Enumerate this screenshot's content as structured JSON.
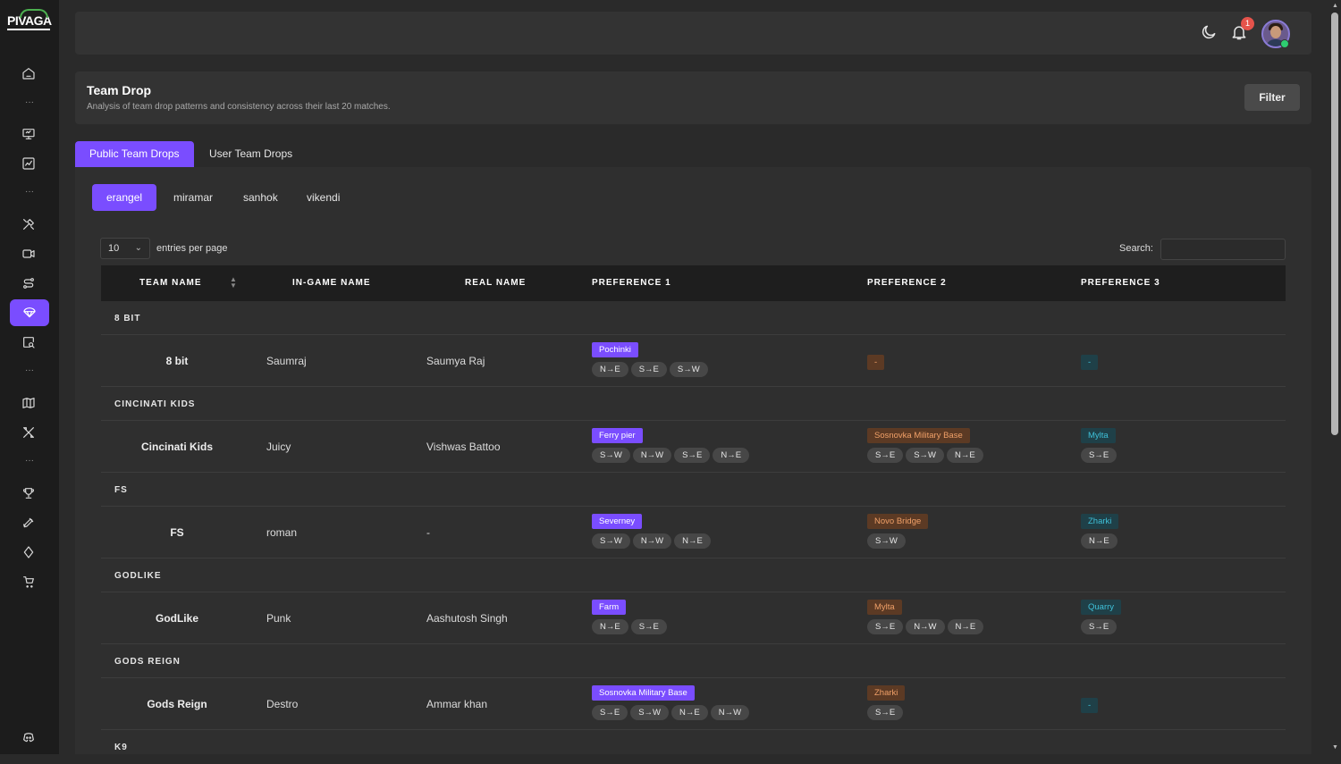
{
  "app": {
    "logo": "PIVAGA"
  },
  "header": {
    "notification_count": "1"
  },
  "page": {
    "title": "Team Drop",
    "subtitle": "Analysis of team drop patterns and consistency across their last 20 matches.",
    "filter_label": "Filter"
  },
  "tabs": [
    "Public Team Drops",
    "User Team Drops"
  ],
  "maps": [
    "erangel",
    "miramar",
    "sanhok",
    "vikendi"
  ],
  "table_controls": {
    "entries_value": "10",
    "entries_label": "entries per page",
    "search_label": "Search:"
  },
  "columns": [
    "TEAM NAME",
    "IN-GAME NAME",
    "REAL NAME",
    "PREFERENCE 1",
    "PREFERENCE 2",
    "PREFERENCE 3"
  ],
  "groups": [
    {
      "group": "8 BIT",
      "team": "8 bit",
      "ign": "Saumraj",
      "real": "Saumya Raj",
      "p1": {
        "loc": "Pochinki",
        "dirs": [
          "N→E",
          "S→E",
          "S→W"
        ]
      },
      "p2": {
        "loc": "-",
        "dirs": []
      },
      "p3": {
        "loc": "-",
        "dirs": []
      }
    },
    {
      "group": "CINCINATI KIDS",
      "team": "Cincinati Kids",
      "ign": "Juicy",
      "real": "Vishwas Battoo",
      "p1": {
        "loc": "Ferry pier",
        "dirs": [
          "S→W",
          "N→W",
          "S→E",
          "N→E"
        ]
      },
      "p2": {
        "loc": "Sosnovka Military Base",
        "dirs": [
          "S→E",
          "S→W",
          "N→E"
        ]
      },
      "p3": {
        "loc": "Mylta",
        "dirs": [
          "S→E"
        ]
      }
    },
    {
      "group": "FS",
      "team": "FS",
      "ign": "roman",
      "real": "-",
      "p1": {
        "loc": "Severney",
        "dirs": [
          "S→W",
          "N→W",
          "N→E"
        ]
      },
      "p2": {
        "loc": "Novo Bridge",
        "dirs": [
          "S→W"
        ]
      },
      "p3": {
        "loc": "Zharki",
        "dirs": [
          "N→E"
        ]
      }
    },
    {
      "group": "GODLIKE",
      "team": "GodLike",
      "ign": "Punk",
      "real": "Aashutosh Singh",
      "p1": {
        "loc": "Farm",
        "dirs": [
          "N→E",
          "S→E"
        ]
      },
      "p2": {
        "loc": "Mylta",
        "dirs": [
          "S→E",
          "N→W",
          "N→E"
        ]
      },
      "p3": {
        "loc": "Quarry",
        "dirs": [
          "S→E"
        ]
      }
    },
    {
      "group": "GODS REIGN",
      "team": "Gods Reign",
      "ign": "Destro",
      "real": "Ammar khan",
      "p1": {
        "loc": "Sosnovka Military Base",
        "dirs": [
          "S→E",
          "S→W",
          "N→E",
          "N→W"
        ]
      },
      "p2": {
        "loc": "Zharki",
        "dirs": [
          "S→E"
        ]
      },
      "p3": {
        "loc": "-",
        "dirs": []
      }
    }
  ],
  "trailing_group": "K9",
  "icons": {
    "sidebar": [
      "home-icon",
      "monitor-icon",
      "chart-icon",
      "tools-icon",
      "video-icon",
      "route-icon",
      "parachute-icon",
      "search-doc-icon",
      "map-icon",
      "crossed-tools-icon",
      "trophy-icon",
      "rocket-icon",
      "diamond-icon",
      "cart-icon",
      "discord-icon"
    ],
    "topbar": [
      "moon-icon",
      "bell-icon",
      "avatar"
    ]
  },
  "colors": {
    "accent": "#7a4dff",
    "pref2_text": "#f0a068",
    "pref3_text": "#3fc0d8"
  }
}
